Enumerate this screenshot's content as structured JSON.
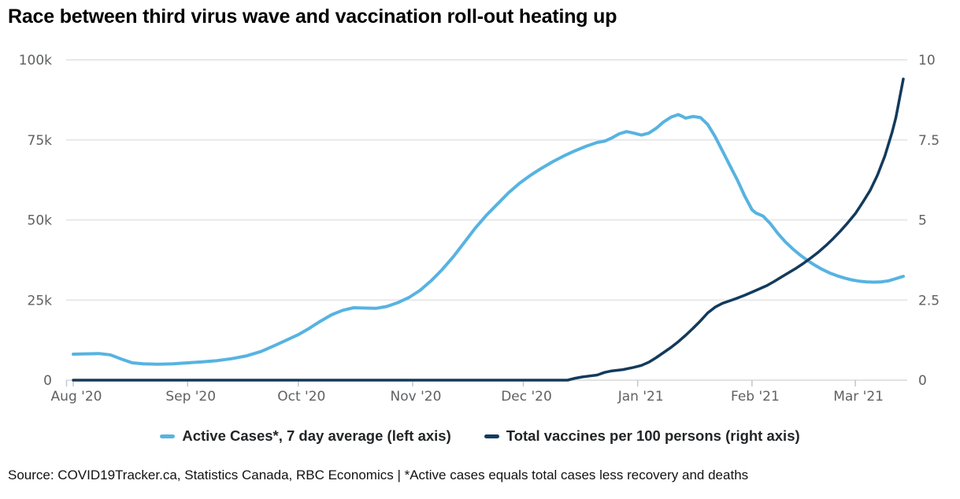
{
  "page": {
    "title": "Race between third virus wave and vaccination roll-out heating up",
    "source_note": "Source: COVID19Tracker.ca, Statistics Canada, RBC Economics | *Active cases equals total cases less recovery and deaths"
  },
  "colors": {
    "active_cases": "#57B3E1",
    "vaccines": "#133A5C",
    "grid": "#E8E8E8",
    "axis_line": "#D8D8D8",
    "tick_mark": "#BCC8D4",
    "tick_text": "#5F6163"
  },
  "legend": {
    "items": [
      {
        "id": "active-cases",
        "label": "Active Cases*, 7 day average (left axis)",
        "color": "#57B3E1"
      },
      {
        "id": "vaccines",
        "label": "Total vaccines per 100 persons (right axis)",
        "color": "#133A5C"
      }
    ]
  },
  "chart_data": {
    "type": "line",
    "title": "Race between third virus wave and vaccination roll-out heating up",
    "grid": "horizontal",
    "legend_position": "bottom-center",
    "x_axis": {
      "ticks": [
        {
          "date": "2020-08-01",
          "label": "Aug '20"
        },
        {
          "date": "2020-09-01",
          "label": "Sep '20"
        },
        {
          "date": "2020-10-01",
          "label": "Oct '20"
        },
        {
          "date": "2020-11-01",
          "label": "Nov '20"
        },
        {
          "date": "2020-12-01",
          "label": "Dec '20"
        },
        {
          "date": "2021-01-01",
          "label": "Jan '21"
        },
        {
          "date": "2021-02-01",
          "label": "Feb '21"
        },
        {
          "date": "2021-03-01",
          "label": "Mar '21"
        }
      ]
    },
    "left_axis": {
      "range": [
        0,
        100000
      ],
      "ticks": [
        {
          "value": 0,
          "label": "0"
        },
        {
          "value": 25000,
          "label": "25k"
        },
        {
          "value": 50000,
          "label": "50k"
        },
        {
          "value": 75000,
          "label": "75k"
        },
        {
          "value": 100000,
          "label": "100k"
        }
      ]
    },
    "right_axis": {
      "range": [
        0,
        10
      ],
      "ticks": [
        {
          "value": 0,
          "label": "0"
        },
        {
          "value": 2.5,
          "label": "2.5"
        },
        {
          "value": 5,
          "label": "5"
        },
        {
          "value": 7.5,
          "label": "7.5"
        },
        {
          "value": 10,
          "label": "10"
        }
      ]
    },
    "series": [
      {
        "id": "active-cases-line",
        "name": "Active Cases*, 7 day average (left axis)",
        "axis": "left",
        "color": "#57B3E1",
        "points": [
          [
            "2020-08-01",
            8100
          ],
          [
            "2020-08-04",
            8200
          ],
          [
            "2020-08-08",
            8300
          ],
          [
            "2020-08-11",
            7900
          ],
          [
            "2020-08-14",
            6600
          ],
          [
            "2020-08-17",
            5400
          ],
          [
            "2020-08-20",
            5100
          ],
          [
            "2020-08-24",
            5000
          ],
          [
            "2020-08-28",
            5100
          ],
          [
            "2020-09-01",
            5400
          ],
          [
            "2020-09-05",
            5700
          ],
          [
            "2020-09-09",
            6100
          ],
          [
            "2020-09-13",
            6700
          ],
          [
            "2020-09-17",
            7600
          ],
          [
            "2020-09-21",
            9000
          ],
          [
            "2020-09-25",
            11000
          ],
          [
            "2020-09-28",
            12600
          ],
          [
            "2020-10-01",
            14200
          ],
          [
            "2020-10-04",
            16200
          ],
          [
            "2020-10-07",
            18400
          ],
          [
            "2020-10-10",
            20400
          ],
          [
            "2020-10-13",
            21800
          ],
          [
            "2020-10-16",
            22600
          ],
          [
            "2020-10-19",
            22500
          ],
          [
            "2020-10-22",
            22400
          ],
          [
            "2020-10-25",
            23000
          ],
          [
            "2020-10-28",
            24200
          ],
          [
            "2020-10-31",
            25800
          ],
          [
            "2020-11-03",
            28000
          ],
          [
            "2020-11-06",
            31000
          ],
          [
            "2020-11-09",
            34500
          ],
          [
            "2020-11-12",
            38500
          ],
          [
            "2020-11-15",
            43000
          ],
          [
            "2020-11-18",
            47500
          ],
          [
            "2020-11-21",
            51500
          ],
          [
            "2020-11-24",
            55000
          ],
          [
            "2020-11-27",
            58500
          ],
          [
            "2020-11-30",
            61500
          ],
          [
            "2020-12-03",
            64000
          ],
          [
            "2020-12-06",
            66200
          ],
          [
            "2020-12-09",
            68200
          ],
          [
            "2020-12-12",
            70000
          ],
          [
            "2020-12-15",
            71600
          ],
          [
            "2020-12-18",
            73000
          ],
          [
            "2020-12-21",
            74200
          ],
          [
            "2020-12-23",
            74600
          ],
          [
            "2020-12-25",
            75600
          ],
          [
            "2020-12-27",
            76900
          ],
          [
            "2020-12-29",
            77600
          ],
          [
            "2020-12-31",
            77100
          ],
          [
            "2021-01-02",
            76500
          ],
          [
            "2021-01-04",
            77100
          ],
          [
            "2021-01-06",
            78600
          ],
          [
            "2021-01-08",
            80600
          ],
          [
            "2021-01-10",
            82100
          ],
          [
            "2021-01-12",
            82900
          ],
          [
            "2021-01-13",
            82400
          ],
          [
            "2021-01-14",
            81800
          ],
          [
            "2021-01-16",
            82300
          ],
          [
            "2021-01-18",
            82000
          ],
          [
            "2021-01-20",
            79800
          ],
          [
            "2021-01-22",
            76000
          ],
          [
            "2021-01-24",
            71500
          ],
          [
            "2021-01-26",
            67000
          ],
          [
            "2021-01-28",
            62500
          ],
          [
            "2021-01-30",
            57500
          ],
          [
            "2021-02-01",
            53200
          ],
          [
            "2021-02-02",
            52200
          ],
          [
            "2021-02-04",
            51200
          ],
          [
            "2021-02-06",
            48800
          ],
          [
            "2021-02-08",
            45800
          ],
          [
            "2021-02-10",
            43200
          ],
          [
            "2021-02-12",
            41000
          ],
          [
            "2021-02-14",
            39100
          ],
          [
            "2021-02-16",
            37400
          ],
          [
            "2021-02-18",
            35900
          ],
          [
            "2021-02-20",
            34600
          ],
          [
            "2021-02-22",
            33500
          ],
          [
            "2021-02-24",
            32600
          ],
          [
            "2021-02-26",
            31900
          ],
          [
            "2021-02-28",
            31300
          ],
          [
            "2021-03-02",
            30900
          ],
          [
            "2021-03-04",
            30700
          ],
          [
            "2021-03-06",
            30600
          ],
          [
            "2021-03-08",
            30700
          ],
          [
            "2021-03-10",
            31000
          ],
          [
            "2021-03-12",
            31700
          ],
          [
            "2021-03-14",
            32400
          ]
        ]
      },
      {
        "id": "vaccines-line",
        "name": "Total vaccines per 100 persons (right axis)",
        "axis": "right",
        "color": "#133A5C",
        "points": [
          [
            "2020-08-01",
            0
          ],
          [
            "2020-09-01",
            0
          ],
          [
            "2020-10-01",
            0
          ],
          [
            "2020-11-01",
            0
          ],
          [
            "2020-12-01",
            0
          ],
          [
            "2020-12-13",
            0
          ],
          [
            "2020-12-15",
            0.06
          ],
          [
            "2020-12-17",
            0.1
          ],
          [
            "2020-12-19",
            0.13
          ],
          [
            "2020-12-21",
            0.16
          ],
          [
            "2020-12-23",
            0.24
          ],
          [
            "2020-12-25",
            0.29
          ],
          [
            "2020-12-28",
            0.33
          ],
          [
            "2020-12-31",
            0.4
          ],
          [
            "2021-01-02",
            0.46
          ],
          [
            "2021-01-04",
            0.56
          ],
          [
            "2021-01-06",
            0.7
          ],
          [
            "2021-01-08",
            0.86
          ],
          [
            "2021-01-10",
            1.02
          ],
          [
            "2021-01-12",
            1.2
          ],
          [
            "2021-01-14",
            1.4
          ],
          [
            "2021-01-16",
            1.62
          ],
          [
            "2021-01-18",
            1.85
          ],
          [
            "2021-01-20",
            2.1
          ],
          [
            "2021-01-22",
            2.28
          ],
          [
            "2021-01-24",
            2.4
          ],
          [
            "2021-01-26",
            2.48
          ],
          [
            "2021-01-28",
            2.56
          ],
          [
            "2021-01-30",
            2.65
          ],
          [
            "2021-02-01",
            2.75
          ],
          [
            "2021-02-03",
            2.85
          ],
          [
            "2021-02-05",
            2.95
          ],
          [
            "2021-02-07",
            3.08
          ],
          [
            "2021-02-09",
            3.22
          ],
          [
            "2021-02-11",
            3.36
          ],
          [
            "2021-02-13",
            3.5
          ],
          [
            "2021-02-15",
            3.65
          ],
          [
            "2021-02-17",
            3.82
          ],
          [
            "2021-02-19",
            4.0
          ],
          [
            "2021-02-21",
            4.2
          ],
          [
            "2021-02-23",
            4.42
          ],
          [
            "2021-02-25",
            4.66
          ],
          [
            "2021-02-27",
            4.92
          ],
          [
            "2021-03-01",
            5.2
          ],
          [
            "2021-03-03",
            5.55
          ],
          [
            "2021-03-05",
            5.92
          ],
          [
            "2021-03-07",
            6.4
          ],
          [
            "2021-03-09",
            7.0
          ],
          [
            "2021-03-11",
            7.75
          ],
          [
            "2021-03-12",
            8.2
          ],
          [
            "2021-03-13",
            8.8
          ],
          [
            "2021-03-14",
            9.4
          ]
        ]
      }
    ]
  }
}
